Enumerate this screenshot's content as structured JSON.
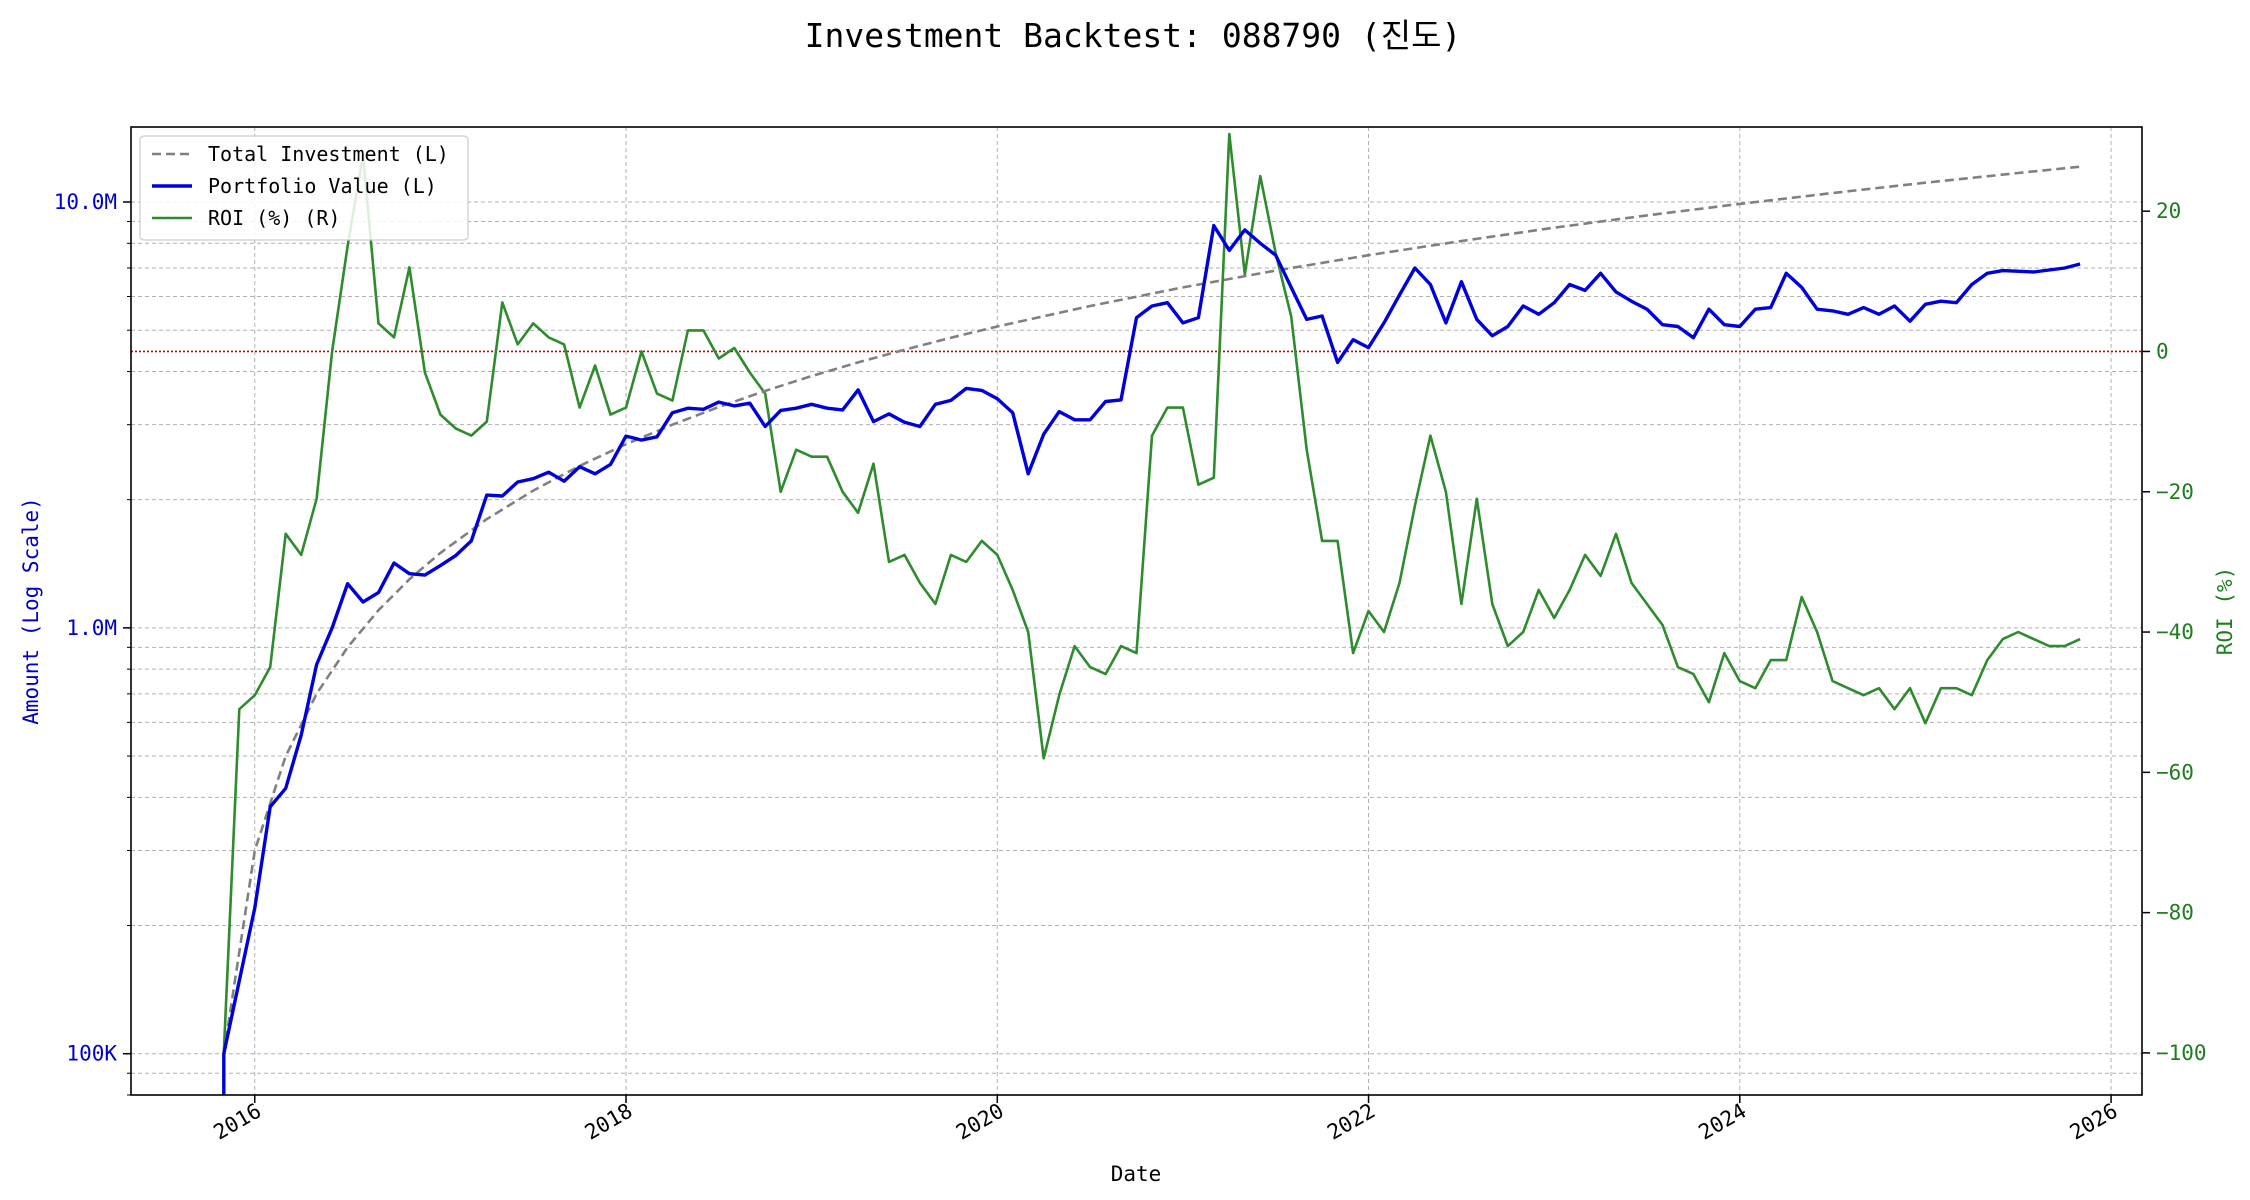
{
  "chart_data": {
    "type": "line",
    "title": "Investment Backtest: 088790 (진도)",
    "xlabel": "Date",
    "ylabel_left": "Amount (Log Scale)",
    "ylabel_right": "ROI (%)",
    "left_scale": "log",
    "left_ylim": [
      80000,
      15000000
    ],
    "right_ylim": [
      -106,
      32
    ],
    "xlim": [
      "2015-05-01",
      "2026-03-01"
    ],
    "x_ticks": [
      "2016",
      "2018",
      "2020",
      "2022",
      "2024",
      "2026"
    ],
    "left_ticks": [
      {
        "value": 100000,
        "label": "100K"
      },
      {
        "value": 1000000,
        "label": "1.0M"
      },
      {
        "value": 10000000,
        "label": "10.0M"
      }
    ],
    "right_ticks": [
      20,
      0,
      -20,
      -40,
      -60,
      -80,
      -100
    ],
    "grid": true,
    "legend_position": "upper-left",
    "reference_line": {
      "axis": "right",
      "value": 0,
      "style": "dotted",
      "color": "#cc0000"
    },
    "colors": {
      "investment": "#808080",
      "portfolio": "#0000dd",
      "roi": "#2e8b2e",
      "left_axis": "#0000cc",
      "right_axis": "#1e7d1e"
    },
    "series": [
      {
        "name": "Total Investment (L)",
        "axis": "left",
        "style": "dashed",
        "x": [
          "2015-11",
          "2016-01",
          "2016-03",
          "2016-05",
          "2016-07",
          "2016-09",
          "2016-11",
          "2017-01",
          "2017-04",
          "2017-07",
          "2017-10",
          "2018-01",
          "2018-04",
          "2018-07",
          "2018-10",
          "2019-01",
          "2019-04",
          "2019-07",
          "2019-10",
          "2020-01",
          "2020-07",
          "2021-01",
          "2021-07",
          "2022-01",
          "2022-07",
          "2023-01",
          "2023-07",
          "2024-01",
          "2024-07",
          "2025-01",
          "2025-07",
          "2025-11"
        ],
        "values": [
          100000,
          300000,
          500000,
          700000,
          900000,
          1100000,
          1300000,
          1500000,
          1800000,
          2100000,
          2400000,
          2700000,
          3000000,
          3300000,
          3600000,
          3900000,
          4200000,
          4500000,
          4800000,
          5100000,
          5700000,
          6300000,
          6900000,
          7500000,
          8100000,
          8700000,
          9300000,
          9900000,
          10500000,
          11100000,
          11700000,
          12100000
        ]
      },
      {
        "name": "Portfolio Value (L)",
        "axis": "left",
        "style": "solid",
        "x": [
          "2015-11",
          "2016-01",
          "2016-02",
          "2016-03",
          "2016-04",
          "2016-05",
          "2016-06",
          "2016-07",
          "2016-08",
          "2016-09",
          "2016-10",
          "2016-11",
          "2016-12",
          "2017-01",
          "2017-02",
          "2017-03",
          "2017-04",
          "2017-05",
          "2017-06",
          "2017-07",
          "2017-08",
          "2017-09",
          "2017-10",
          "2017-11",
          "2017-12",
          "2018-01",
          "2018-02",
          "2018-03",
          "2018-04",
          "2018-05",
          "2018-06",
          "2018-07",
          "2018-08",
          "2018-09",
          "2018-10",
          "2018-11",
          "2018-12",
          "2019-01",
          "2019-02",
          "2019-03",
          "2019-04",
          "2019-05",
          "2019-06",
          "2019-07",
          "2019-08",
          "2019-09",
          "2019-10",
          "2019-11",
          "2019-12",
          "2020-01",
          "2020-02",
          "2020-03",
          "2020-04",
          "2020-05",
          "2020-06",
          "2020-07",
          "2020-08",
          "2020-09",
          "2020-10",
          "2020-11",
          "2020-12",
          "2021-01",
          "2021-02",
          "2021-03",
          "2021-04",
          "2021-05",
          "2021-06",
          "2021-07",
          "2021-08",
          "2021-09",
          "2021-10",
          "2021-11",
          "2021-12",
          "2022-01",
          "2022-02",
          "2022-03",
          "2022-04",
          "2022-05",
          "2022-06",
          "2022-07",
          "2022-08",
          "2022-09",
          "2022-10",
          "2022-11",
          "2022-12",
          "2023-01",
          "2023-02",
          "2023-03",
          "2023-04",
          "2023-05",
          "2023-06",
          "2023-07",
          "2023-08",
          "2023-09",
          "2023-10",
          "2023-11",
          "2023-12",
          "2024-01",
          "2024-02",
          "2024-03",
          "2024-04",
          "2024-05",
          "2024-06",
          "2024-07",
          "2024-08",
          "2024-09",
          "2024-10",
          "2024-11",
          "2024-12",
          "2025-01",
          "2025-02",
          "2025-03",
          "2025-04",
          "2025-05",
          "2025-06",
          "2025-08",
          "2025-10",
          "2025-11"
        ],
        "values": [
          100000,
          220000,
          380000,
          420000,
          560000,
          820000,
          1000000,
          1270000,
          1150000,
          1210000,
          1420000,
          1340000,
          1330000,
          1400000,
          1480000,
          1600000,
          2050000,
          2040000,
          2200000,
          2240000,
          2320000,
          2210000,
          2390000,
          2300000,
          2420000,
          2820000,
          2760000,
          2810000,
          3200000,
          3280000,
          3260000,
          3390000,
          3320000,
          3370000,
          2970000,
          3240000,
          3280000,
          3350000,
          3280000,
          3250000,
          3620000,
          3050000,
          3180000,
          3040000,
          2970000,
          3350000,
          3420000,
          3650000,
          3610000,
          3450000,
          3200000,
          2300000,
          2850000,
          3220000,
          3080000,
          3080000,
          3400000,
          3430000,
          5350000,
          5700000,
          5800000,
          5200000,
          5350000,
          8800000,
          7700000,
          8600000,
          8000000,
          7500000,
          6300000,
          5300000,
          5400000,
          4200000,
          4750000,
          4550000,
          5200000,
          6050000,
          7000000,
          6400000,
          5200000,
          6500000,
          5300000,
          4850000,
          5100000,
          5700000,
          5450000,
          5800000,
          6400000,
          6200000,
          6800000,
          6150000,
          5850000,
          5600000,
          5150000,
          5100000,
          4800000,
          5600000,
          5150000,
          5100000,
          5600000,
          5650000,
          6800000,
          6300000,
          5600000,
          5550000,
          5450000,
          5650000,
          5450000,
          5700000,
          5250000,
          5750000,
          5850000,
          5800000,
          6400000,
          6800000,
          6900000,
          6850000,
          7000000,
          7150000
        ]
      },
      {
        "name": "ROI (%) (R)",
        "axis": "right",
        "style": "solid",
        "x": [
          "2015-11",
          "2015-12",
          "2016-01",
          "2016-02",
          "2016-03",
          "2016-04",
          "2016-05",
          "2016-06",
          "2016-07",
          "2016-08",
          "2016-09",
          "2016-10",
          "2016-11",
          "2016-12",
          "2017-01",
          "2017-02",
          "2017-03",
          "2017-04",
          "2017-05",
          "2017-06",
          "2017-07",
          "2017-08",
          "2017-09",
          "2017-10",
          "2017-11",
          "2017-12",
          "2018-01",
          "2018-02",
          "2018-03",
          "2018-04",
          "2018-05",
          "2018-06",
          "2018-07",
          "2018-08",
          "2018-09",
          "2018-10",
          "2018-11",
          "2018-12",
          "2019-01",
          "2019-02",
          "2019-03",
          "2019-04",
          "2019-05",
          "2019-06",
          "2019-07",
          "2019-08",
          "2019-09",
          "2019-10",
          "2019-11",
          "2019-12",
          "2020-01",
          "2020-02",
          "2020-03",
          "2020-04",
          "2020-05",
          "2020-06",
          "2020-07",
          "2020-08",
          "2020-09",
          "2020-10",
          "2020-11",
          "2020-12",
          "2021-01",
          "2021-02",
          "2021-03",
          "2021-04",
          "2021-05",
          "2021-06",
          "2021-07",
          "2021-08",
          "2021-09",
          "2021-10",
          "2021-11",
          "2021-12",
          "2022-01",
          "2022-02",
          "2022-03",
          "2022-04",
          "2022-05",
          "2022-06",
          "2022-07",
          "2022-08",
          "2022-09",
          "2022-10",
          "2022-11",
          "2022-12",
          "2023-01",
          "2023-02",
          "2023-03",
          "2023-04",
          "2023-05",
          "2023-06",
          "2023-07",
          "2023-08",
          "2023-09",
          "2023-10",
          "2023-11",
          "2023-12",
          "2024-01",
          "2024-02",
          "2024-03",
          "2024-04",
          "2024-05",
          "2024-06",
          "2024-07",
          "2024-08",
          "2024-09",
          "2024-10",
          "2024-11",
          "2024-12",
          "2025-01",
          "2025-02",
          "2025-03",
          "2025-04",
          "2025-05",
          "2025-06",
          "2025-07",
          "2025-08",
          "2025-09",
          "2025-10",
          "2025-11"
        ],
        "values": [
          -100,
          -51,
          -49,
          -45,
          -26,
          -29,
          -21,
          0,
          15,
          28,
          4,
          2,
          12,
          -3,
          -9,
          -11,
          -12,
          -10,
          7,
          1,
          4,
          2,
          1,
          -8,
          -2,
          -9,
          -8,
          0,
          -6,
          -7,
          3,
          3,
          -1,
          0.5,
          -3,
          -6,
          -20,
          -14,
          -15,
          -15,
          -20,
          -23,
          -16,
          -30,
          -29,
          -33,
          -36,
          -29,
          -30,
          -27,
          -29,
          -34,
          -40,
          -58,
          -49,
          -42,
          -45,
          -46,
          -42,
          -43,
          -12,
          -8,
          -8,
          -19,
          -18,
          31,
          11,
          25,
          14,
          5,
          -14,
          -27,
          -27,
          -43,
          -37,
          -40,
          -33,
          -22,
          -12,
          -20,
          -36,
          -21,
          -36,
          -42,
          -40,
          -34,
          -38,
          -34,
          -29,
          -32,
          -26,
          -33,
          -36,
          -39,
          -45,
          -46,
          -50,
          -43,
          -47,
          -48,
          -44,
          -44,
          -35,
          -40,
          -47,
          -48,
          -49,
          -48,
          -51,
          -48,
          -53,
          -48,
          -48,
          -49,
          -44,
          -41,
          -40,
          -41,
          -42,
          -42,
          -41
        ]
      }
    ]
  }
}
